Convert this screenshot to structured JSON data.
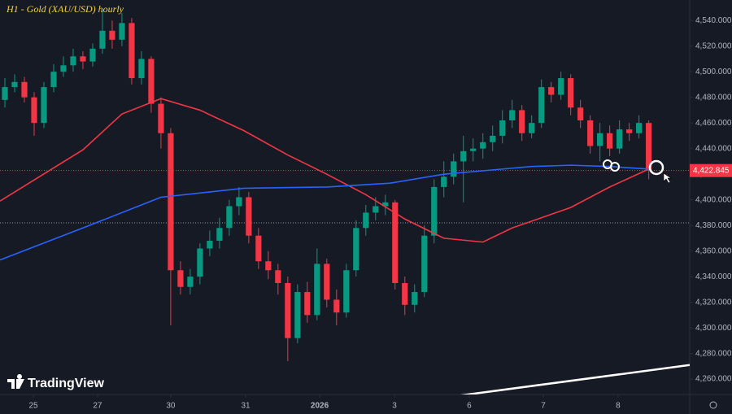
{
  "chart_data": {
    "type": "candlestick",
    "title": "H1 - Gold (XAU/USD) hourly",
    "brand": "TradingView",
    "x": [
      0,
      1,
      2,
      3,
      4,
      5,
      6,
      7,
      8,
      9,
      10,
      11,
      12,
      13,
      14,
      15,
      16,
      17,
      18,
      19,
      20,
      21,
      22,
      23,
      24,
      25,
      26,
      27,
      28,
      29,
      30,
      31,
      32,
      33,
      34,
      35,
      36,
      37,
      38,
      39,
      40,
      41,
      42,
      43,
      44,
      45,
      46,
      47,
      48,
      49,
      50,
      51,
      52,
      53,
      54,
      55,
      56,
      57,
      58,
      59,
      60,
      61,
      62,
      63,
      64,
      65,
      66
    ],
    "open": [
      4478,
      4488,
      4492,
      4480,
      4460,
      4488,
      4500,
      4505,
      4512,
      4508,
      4518,
      4532,
      4525,
      4538,
      4495,
      4510,
      4475,
      4452,
      4345,
      4332,
      4340,
      4362,
      4368,
      4378,
      4395,
      4402,
      4372,
      4352,
      4345,
      4335,
      4292,
      4328,
      4310,
      4350,
      4322,
      4312,
      4345,
      4378,
      4390,
      4395,
      4398,
      4335,
      4318,
      4328,
      4372,
      4410,
      4418,
      4430,
      4438,
      4440,
      4445,
      4450,
      4462,
      4470,
      4452,
      4460,
      4488,
      4482,
      4495,
      4472,
      4462,
      4442,
      4452,
      4440,
      4455,
      4452,
      4460
    ],
    "high": [
      4495,
      4498,
      4496,
      4484,
      4492,
      4506,
      4512,
      4518,
      4516,
      4522,
      4548,
      4540,
      4546,
      4542,
      4516,
      4512,
      4480,
      4456,
      4352,
      4346,
      4366,
      4376,
      4386,
      4400,
      4410,
      4406,
      4378,
      4360,
      4350,
      4340,
      4334,
      4336,
      4362,
      4354,
      4330,
      4350,
      4384,
      4396,
      4402,
      4404,
      4400,
      4340,
      4334,
      4380,
      4416,
      4430,
      4436,
      4450,
      4448,
      4452,
      4458,
      4470,
      4478,
      4474,
      4466,
      4494,
      4492,
      4500,
      4498,
      4478,
      4466,
      4460,
      4458,
      4462,
      4460,
      4466,
      4462
    ],
    "low": [
      4472,
      4484,
      4476,
      4450,
      4456,
      4484,
      4496,
      4500,
      4502,
      4504,
      4514,
      4518,
      4520,
      4490,
      4490,
      4468,
      4440,
      4302,
      4326,
      4326,
      4334,
      4356,
      4362,
      4372,
      4388,
      4366,
      4346,
      4338,
      4326,
      4274,
      4288,
      4304,
      4306,
      4316,
      4302,
      4308,
      4340,
      4372,
      4384,
      4388,
      4330,
      4310,
      4312,
      4324,
      4366,
      4402,
      4412,
      4398,
      4430,
      4432,
      4438,
      4444,
      4456,
      4446,
      4448,
      4456,
      4476,
      4478,
      4466,
      4456,
      4436,
      4430,
      4434,
      4436,
      4446,
      4448,
      4416
    ],
    "close": [
      4488,
      4492,
      4480,
      4460,
      4488,
      4500,
      4505,
      4512,
      4508,
      4518,
      4532,
      4525,
      4538,
      4495,
      4510,
      4475,
      4452,
      4345,
      4332,
      4340,
      4362,
      4368,
      4378,
      4395,
      4402,
      4372,
      4352,
      4345,
      4335,
      4292,
      4328,
      4310,
      4350,
      4322,
      4312,
      4345,
      4378,
      4390,
      4395,
      4398,
      4335,
      4318,
      4328,
      4372,
      4410,
      4418,
      4430,
      4438,
      4440,
      4445,
      4450,
      4462,
      4470,
      4452,
      4460,
      4488,
      4482,
      4495,
      4472,
      4462,
      4442,
      4452,
      4440,
      4455,
      4452,
      4460,
      4423
    ],
    "up_color": "#089981",
    "down_color": "#f23645",
    "lines": [
      {
        "color": "#f23645",
        "x": [
          -0.5,
          8,
          12,
          16,
          20,
          24.5,
          29,
          33,
          37,
          41,
          45,
          49,
          52,
          58,
          62,
          66
        ],
        "values": [
          4399,
          4439,
          4467,
          4479,
          4470,
          4454,
          4435,
          4420,
          4404,
          4385,
          4370,
          4367,
          4378,
          4394,
          4410,
          4424
        ]
      },
      {
        "color": "#2962ff",
        "x": [
          -0.5,
          8,
          16,
          24.5,
          33,
          39.5,
          45,
          54,
          58,
          62,
          66
        ],
        "values": [
          4353,
          4378,
          4402,
          4409,
          4410,
          4413,
          4420,
          4426,
          4427,
          4426,
          4424
        ]
      },
      {
        "color": "#ffffff",
        "x": [
          44.5,
          70.2
        ],
        "values": [
          4245,
          4271
        ]
      }
    ],
    "price_line": {
      "value": 4422.845,
      "label": "4,422.845",
      "color": "#f23645"
    },
    "ref_line": 4382,
    "xlim": [
      -0.5,
      70.2
    ],
    "ylim": [
      4248,
      4556
    ],
    "grid": false,
    "xticks": [
      {
        "value": 2.92,
        "label": "25"
      },
      {
        "value": 9.5,
        "label": "27"
      },
      {
        "value": 17.0,
        "label": "30"
      },
      {
        "value": 24.68,
        "label": "31"
      },
      {
        "value": 32.27,
        "label": "2026"
      },
      {
        "value": 39.94,
        "label": "3"
      },
      {
        "value": 47.6,
        "label": "6"
      },
      {
        "value": 55.2,
        "label": "7"
      },
      {
        "value": 62.86,
        "label": "8"
      }
    ],
    "yticks": [
      {
        "value": 4260,
        "label": "4,260.000"
      },
      {
        "value": 4280,
        "label": "4,280.000"
      },
      {
        "value": 4300,
        "label": "4,300.000"
      },
      {
        "value": 4320,
        "label": "4,320.000"
      },
      {
        "value": 4340,
        "label": "4,340.000"
      },
      {
        "value": 4360,
        "label": "4,360.000"
      },
      {
        "value": 4380,
        "label": "4,380.000"
      },
      {
        "value": 4400,
        "label": "4,400.000"
      },
      {
        "value": 4420,
        "label": "4,420.000"
      },
      {
        "value": 4440,
        "label": "4,440.000"
      },
      {
        "value": 4460,
        "label": "4,460.000"
      },
      {
        "value": 4480,
        "label": "4,480.000"
      },
      {
        "value": 4500,
        "label": "4,500.000"
      },
      {
        "value": 4520,
        "label": "4,520.000"
      },
      {
        "value": 4540,
        "label": "4,540.000"
      }
    ]
  }
}
